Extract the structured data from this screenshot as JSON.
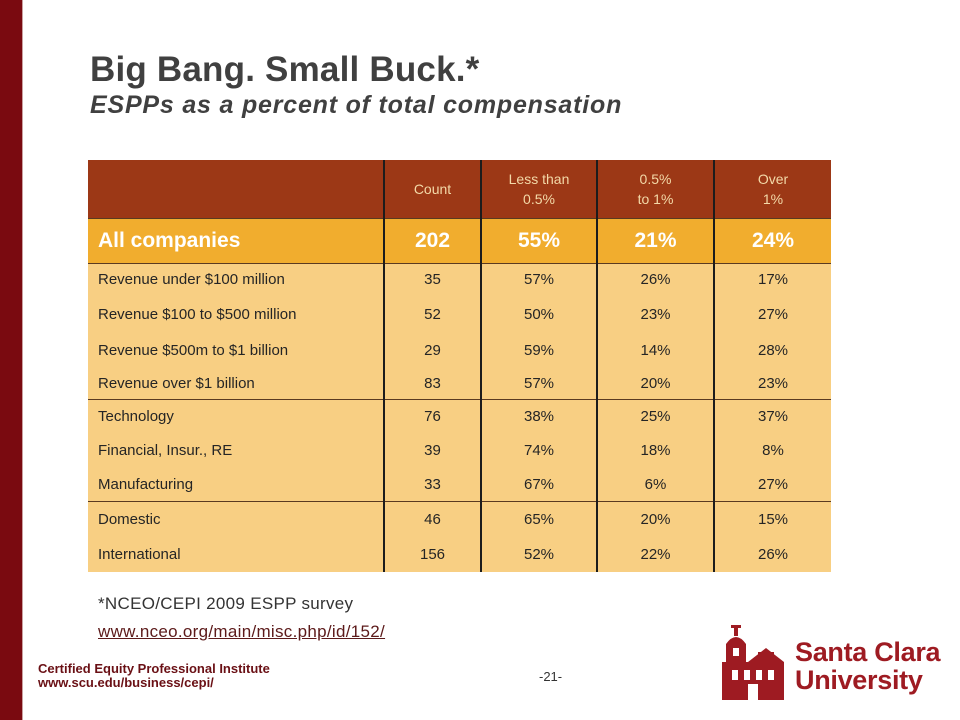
{
  "title": "Big Bang.  Small Buck.*",
  "subtitle": "ESPPs as a percent of total compensation",
  "table": {
    "headers": [
      "",
      "Count",
      "Less than\n0.5%",
      "0.5%\nto 1%",
      "Over\n1%"
    ],
    "all_row": [
      "All companies",
      "202",
      "55%",
      "21%",
      "24%"
    ],
    "rows": [
      [
        "Revenue under $100 million",
        "35",
        "57%",
        "26%",
        "17%"
      ],
      [
        "Revenue $100 to $500 million",
        "52",
        "50%",
        "23%",
        "27%"
      ],
      [
        "Revenue $500m to $1 billion",
        "29",
        "59%",
        "14%",
        "28%"
      ],
      [
        "Revenue over $1 billion",
        "83",
        "57%",
        "20%",
        "23%"
      ],
      [
        "Technology",
        "76",
        "38%",
        "25%",
        "37%"
      ],
      [
        "Financial, Insur., RE",
        "39",
        "74%",
        "18%",
        "8%"
      ],
      [
        "Manufacturing",
        "33",
        "67%",
        "6%",
        "27%"
      ],
      [
        "Domestic",
        "46",
        "65%",
        "20%",
        "15%"
      ],
      [
        "International",
        "156",
        "52%",
        "22%",
        "26%"
      ]
    ]
  },
  "footnote": "*NCEO/CEPI 2009 ESPP survey",
  "link": "www.nceo.org/main/misc.php/id/152/",
  "footer": {
    "institute": "Certified Equity Professional Institute",
    "url": "www.scu.edu/business/cepi/",
    "page": "-21-"
  },
  "logo": {
    "line1": "Santa Clara",
    "line2": "University"
  },
  "colors": {
    "left_bar": "#7a0a10",
    "header_bg": "#9c3816",
    "header_text": "#f3d9a8",
    "all_row_bg": "#f1ad2e",
    "row_bg": "#f8cf83",
    "brand": "#9e1b22"
  }
}
